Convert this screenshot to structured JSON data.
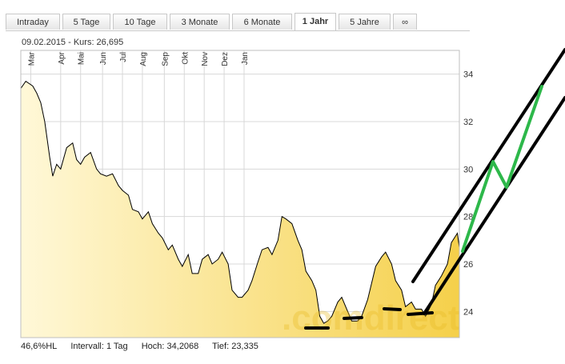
{
  "tabs": [
    {
      "label": "Intraday",
      "active": false
    },
    {
      "label": "5 Tage",
      "active": false
    },
    {
      "label": "10 Tage",
      "active": false
    },
    {
      "label": "3 Monate",
      "active": false
    },
    {
      "label": "6 Monate",
      "active": false
    },
    {
      "label": "1 Jahr",
      "active": true
    },
    {
      "label": "5 Jahre",
      "active": false
    },
    {
      "label": "∞",
      "active": false
    }
  ],
  "header": {
    "info": "09.02.2015  -  Kurs: 26,695"
  },
  "watermark": ".comdirect",
  "footer": {
    "hl": "46,6%HL",
    "interval": "Intervall: 1 Tag",
    "high": "Hoch: 34,2068",
    "low": "Tief:  23,335"
  },
  "colors": {
    "line": "#000000",
    "fill_top": "#f5d04a",
    "fill_bottom": "#fff8d8",
    "grid": "#d8d8d8",
    "annotation_black": "#000000",
    "annotation_green": "#2db84a"
  },
  "chart_data": {
    "type": "area",
    "months": [
      "Mar",
      "Apr",
      "Mai",
      "Jun",
      "Jul",
      "Aug",
      "Sep",
      "Okt",
      "Nov",
      "Dez",
      "Jan"
    ],
    "yticks": [
      "24",
      "26",
      "28",
      "30",
      "32",
      "34"
    ],
    "ylim": [
      22.9,
      35.0
    ],
    "y_axis_position": "right",
    "grid": true,
    "points": [
      {
        "x": 0,
        "y": 33.4
      },
      {
        "x": 0.25,
        "y": 33.7
      },
      {
        "x": 0.6,
        "y": 33.5
      },
      {
        "x": 0.8,
        "y": 33.2
      },
      {
        "x": 1.0,
        "y": 32.8
      },
      {
        "x": 1.2,
        "y": 32.0
      },
      {
        "x": 1.45,
        "y": 30.5
      },
      {
        "x": 1.6,
        "y": 29.7
      },
      {
        "x": 1.8,
        "y": 30.2
      },
      {
        "x": 2.0,
        "y": 30.0
      },
      {
        "x": 2.3,
        "y": 30.9
      },
      {
        "x": 2.6,
        "y": 31.1
      },
      {
        "x": 2.8,
        "y": 30.4
      },
      {
        "x": 3.0,
        "y": 30.2
      },
      {
        "x": 3.2,
        "y": 30.5
      },
      {
        "x": 3.5,
        "y": 30.7
      },
      {
        "x": 3.8,
        "y": 30.0
      },
      {
        "x": 4.0,
        "y": 29.8
      },
      {
        "x": 4.3,
        "y": 29.7
      },
      {
        "x": 4.6,
        "y": 29.8
      },
      {
        "x": 4.9,
        "y": 29.3
      },
      {
        "x": 5.1,
        "y": 29.1
      },
      {
        "x": 5.4,
        "y": 28.9
      },
      {
        "x": 5.6,
        "y": 28.3
      },
      {
        "x": 5.9,
        "y": 28.2
      },
      {
        "x": 6.1,
        "y": 27.9
      },
      {
        "x": 6.4,
        "y": 28.2
      },
      {
        "x": 6.6,
        "y": 27.7
      },
      {
        "x": 6.9,
        "y": 27.3
      },
      {
        "x": 7.1,
        "y": 27.1
      },
      {
        "x": 7.4,
        "y": 26.6
      },
      {
        "x": 7.6,
        "y": 26.8
      },
      {
        "x": 7.9,
        "y": 26.2
      },
      {
        "x": 8.1,
        "y": 25.9
      },
      {
        "x": 8.4,
        "y": 26.4
      },
      {
        "x": 8.6,
        "y": 25.6
      },
      {
        "x": 8.9,
        "y": 25.6
      },
      {
        "x": 9.1,
        "y": 26.2
      },
      {
        "x": 9.4,
        "y": 26.4
      },
      {
        "x": 9.6,
        "y": 26.0
      },
      {
        "x": 9.9,
        "y": 26.2
      },
      {
        "x": 10.1,
        "y": 26.5
      },
      {
        "x": 10.4,
        "y": 26.0
      },
      {
        "x": 10.6,
        "y": 24.9
      },
      {
        "x": 10.9,
        "y": 24.6
      },
      {
        "x": 11.1,
        "y": 24.6
      },
      {
        "x": 11.4,
        "y": 24.9
      },
      {
        "x": 11.6,
        "y": 25.3
      },
      {
        "x": 11.9,
        "y": 26.1
      },
      {
        "x": 12.1,
        "y": 26.6
      },
      {
        "x": 12.4,
        "y": 26.7
      },
      {
        "x": 12.6,
        "y": 26.4
      },
      {
        "x": 12.9,
        "y": 27.0
      },
      {
        "x": 13.1,
        "y": 28.0
      },
      {
        "x": 13.3,
        "y": 27.9
      },
      {
        "x": 13.6,
        "y": 27.7
      },
      {
        "x": 13.9,
        "y": 27.0
      },
      {
        "x": 14.1,
        "y": 26.6
      },
      {
        "x": 14.3,
        "y": 25.7
      },
      {
        "x": 14.6,
        "y": 25.3
      },
      {
        "x": 14.8,
        "y": 24.9
      },
      {
        "x": 15.0,
        "y": 23.8
      },
      {
        "x": 15.2,
        "y": 23.5
      },
      {
        "x": 15.4,
        "y": 23.6
      },
      {
        "x": 15.6,
        "y": 23.8
      },
      {
        "x": 15.9,
        "y": 24.4
      },
      {
        "x": 16.1,
        "y": 24.6
      },
      {
        "x": 16.4,
        "y": 24.0
      },
      {
        "x": 16.6,
        "y": 23.6
      },
      {
        "x": 16.9,
        "y": 23.6
      },
      {
        "x": 17.1,
        "y": 23.8
      },
      {
        "x": 17.4,
        "y": 24.5
      },
      {
        "x": 17.6,
        "y": 25.2
      },
      {
        "x": 17.8,
        "y": 25.9
      },
      {
        "x": 18.1,
        "y": 26.3
      },
      {
        "x": 18.3,
        "y": 26.5
      },
      {
        "x": 18.6,
        "y": 26.0
      },
      {
        "x": 18.8,
        "y": 25.3
      },
      {
        "x": 19.1,
        "y": 24.9
      },
      {
        "x": 19.3,
        "y": 24.2
      },
      {
        "x": 19.6,
        "y": 24.4
      },
      {
        "x": 19.8,
        "y": 24.1
      },
      {
        "x": 20.1,
        "y": 24.1
      },
      {
        "x": 20.3,
        "y": 23.8
      },
      {
        "x": 20.6,
        "y": 24.3
      },
      {
        "x": 20.8,
        "y": 25.1
      },
      {
        "x": 21.1,
        "y": 25.5
      },
      {
        "x": 21.4,
        "y": 26.0
      },
      {
        "x": 21.6,
        "y": 26.9
      },
      {
        "x": 21.9,
        "y": 27.3
      },
      {
        "x": 22.0,
        "y": 26.7
      }
    ],
    "month_tick_x": [
      0.5,
      2.0,
      3.0,
      4.1,
      5.1,
      6.1,
      7.2,
      8.2,
      9.2,
      10.2,
      11.2
    ]
  }
}
